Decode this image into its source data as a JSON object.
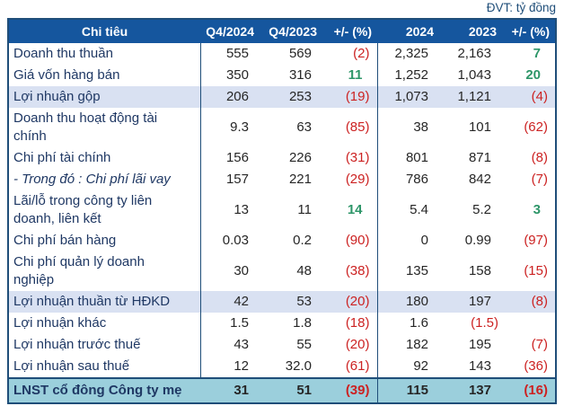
{
  "meta": {
    "unit_label": "ĐVT: tỷ đồng"
  },
  "colors": {
    "header_bg": "#15569E",
    "highlight_bg": "#D9E1F2",
    "total_bg": "#9BCFDC",
    "border": "#1F4E79",
    "red": "#CC2222",
    "green": "#2E9669",
    "label_color": "#1F3864",
    "number_color": "#262626",
    "unit_color": "#1F4E79"
  },
  "chart_data": {
    "type": "table",
    "headers": [
      "Chi tiêu",
      "Q4/2024",
      "Q4/2023",
      "+/- (%)",
      "2024",
      "2023",
      "+/- (%)"
    ],
    "rows": [
      {
        "label": "Doanh thu thuần",
        "style": "normal",
        "italic": false,
        "cells": [
          {
            "v": "555",
            "f": ""
          },
          {
            "v": "569",
            "f": ""
          },
          {
            "v": "(2)",
            "f": "neg"
          },
          {
            "v": "2,325",
            "f": ""
          },
          {
            "v": "2,163",
            "f": ""
          },
          {
            "v": "7",
            "f": "pos"
          }
        ]
      },
      {
        "label": "Giá vốn hàng bán",
        "style": "normal",
        "italic": false,
        "cells": [
          {
            "v": "350",
            "f": ""
          },
          {
            "v": "316",
            "f": ""
          },
          {
            "v": "11",
            "f": "pos"
          },
          {
            "v": "1,252",
            "f": ""
          },
          {
            "v": "1,043",
            "f": ""
          },
          {
            "v": "20",
            "f": "pos"
          }
        ]
      },
      {
        "label": "Lợi nhuận gộp",
        "style": "highlight",
        "italic": false,
        "cells": [
          {
            "v": "206",
            "f": ""
          },
          {
            "v": "253",
            "f": ""
          },
          {
            "v": "(19)",
            "f": "neg"
          },
          {
            "v": "1,073",
            "f": ""
          },
          {
            "v": "1,121",
            "f": ""
          },
          {
            "v": "(4)",
            "f": "neg"
          }
        ]
      },
      {
        "label": "Doanh thu hoạt động tài chính",
        "style": "normal",
        "italic": false,
        "cells": [
          {
            "v": "9.3",
            "f": ""
          },
          {
            "v": "63",
            "f": ""
          },
          {
            "v": "(85)",
            "f": "neg"
          },
          {
            "v": "38",
            "f": ""
          },
          {
            "v": "101",
            "f": ""
          },
          {
            "v": "(62)",
            "f": "neg"
          }
        ]
      },
      {
        "label": "Chi phí tài chính",
        "style": "normal",
        "italic": false,
        "cells": [
          {
            "v": "156",
            "f": ""
          },
          {
            "v": "226",
            "f": ""
          },
          {
            "v": "(31)",
            "f": "neg"
          },
          {
            "v": "801",
            "f": ""
          },
          {
            "v": "871",
            "f": ""
          },
          {
            "v": "(8)",
            "f": "neg"
          }
        ]
      },
      {
        "label": "- Trong đó : Chi phí lãi vay",
        "style": "normal",
        "italic": true,
        "cells": [
          {
            "v": "157",
            "f": ""
          },
          {
            "v": "221",
            "f": ""
          },
          {
            "v": "(29)",
            "f": "neg"
          },
          {
            "v": "786",
            "f": ""
          },
          {
            "v": "842",
            "f": ""
          },
          {
            "v": "(7)",
            "f": "neg"
          }
        ]
      },
      {
        "label": "Lãi/lỗ trong công ty liên doanh, liên kết",
        "style": "normal",
        "italic": false,
        "cells": [
          {
            "v": "13",
            "f": ""
          },
          {
            "v": "11",
            "f": ""
          },
          {
            "v": "14",
            "f": "pos"
          },
          {
            "v": "5.4",
            "f": ""
          },
          {
            "v": "5.2",
            "f": ""
          },
          {
            "v": "3",
            "f": "pos"
          }
        ]
      },
      {
        "label": "Chi phí bán hàng",
        "style": "normal",
        "italic": false,
        "cells": [
          {
            "v": "0.03",
            "f": ""
          },
          {
            "v": "0.2",
            "f": ""
          },
          {
            "v": "(90)",
            "f": "neg"
          },
          {
            "v": "0",
            "f": ""
          },
          {
            "v": "0.99",
            "f": ""
          },
          {
            "v": "(97)",
            "f": "neg"
          }
        ]
      },
      {
        "label": "Chi phí quản lý doanh nghiệp",
        "style": "normal",
        "italic": false,
        "cells": [
          {
            "v": "30",
            "f": ""
          },
          {
            "v": "48",
            "f": ""
          },
          {
            "v": "(38)",
            "f": "neg"
          },
          {
            "v": "135",
            "f": ""
          },
          {
            "v": "158",
            "f": ""
          },
          {
            "v": "(15)",
            "f": "neg"
          }
        ]
      },
      {
        "label": "Lợi nhuận thuần từ HĐKD",
        "style": "highlight",
        "italic": false,
        "cells": [
          {
            "v": "42",
            "f": ""
          },
          {
            "v": "53",
            "f": ""
          },
          {
            "v": "(20)",
            "f": "neg"
          },
          {
            "v": "180",
            "f": ""
          },
          {
            "v": "197",
            "f": ""
          },
          {
            "v": "(8)",
            "f": "neg"
          }
        ]
      },
      {
        "label": "Lợi nhuận khác",
        "style": "normal",
        "italic": false,
        "cells": [
          {
            "v": "1.5",
            "f": ""
          },
          {
            "v": "1.8",
            "f": ""
          },
          {
            "v": "(18)",
            "f": "neg"
          },
          {
            "v": "1.6",
            "f": ""
          },
          {
            "v": "(1.5)",
            "f": "neg"
          },
          {
            "v": "",
            "f": ""
          }
        ]
      },
      {
        "label": "Lợi nhuận trước thuế",
        "style": "normal",
        "italic": false,
        "cells": [
          {
            "v": "43",
            "f": ""
          },
          {
            "v": "55",
            "f": ""
          },
          {
            "v": "(20)",
            "f": "neg"
          },
          {
            "v": "182",
            "f": ""
          },
          {
            "v": "195",
            "f": ""
          },
          {
            "v": "(7)",
            "f": "neg"
          }
        ]
      },
      {
        "label": "Lợi nhuận sau thuế",
        "style": "normal",
        "italic": false,
        "cells": [
          {
            "v": "12",
            "f": ""
          },
          {
            "v": "32.0",
            "f": ""
          },
          {
            "v": "(61)",
            "f": "neg"
          },
          {
            "v": "92",
            "f": ""
          },
          {
            "v": "143",
            "f": ""
          },
          {
            "v": "(36)",
            "f": "neg"
          }
        ]
      },
      {
        "label": "LNST cổ đông Công ty mẹ",
        "style": "total",
        "italic": false,
        "cells": [
          {
            "v": "31",
            "f": ""
          },
          {
            "v": "51",
            "f": ""
          },
          {
            "v": "(39)",
            "f": "neg"
          },
          {
            "v": "115",
            "f": ""
          },
          {
            "v": "137",
            "f": ""
          },
          {
            "v": "(16)",
            "f": "neg"
          }
        ]
      }
    ]
  }
}
